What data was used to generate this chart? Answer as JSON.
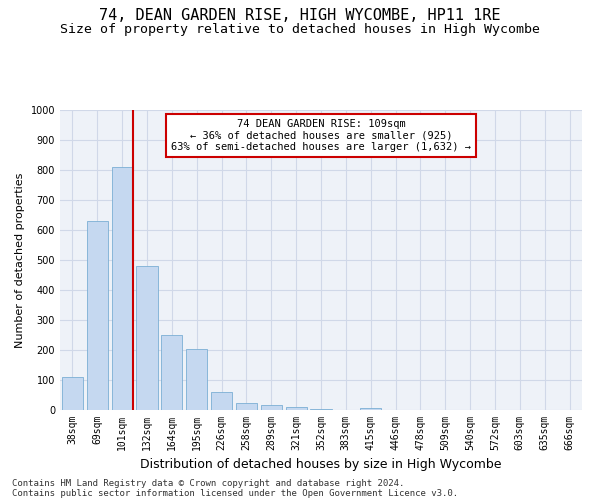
{
  "title": "74, DEAN GARDEN RISE, HIGH WYCOMBE, HP11 1RE",
  "subtitle": "Size of property relative to detached houses in High Wycombe",
  "xlabel": "Distribution of detached houses by size in High Wycombe",
  "ylabel": "Number of detached properties",
  "categories": [
    "38sqm",
    "69sqm",
    "101sqm",
    "132sqm",
    "164sqm",
    "195sqm",
    "226sqm",
    "258sqm",
    "289sqm",
    "321sqm",
    "352sqm",
    "383sqm",
    "415sqm",
    "446sqm",
    "478sqm",
    "509sqm",
    "540sqm",
    "572sqm",
    "603sqm",
    "635sqm",
    "666sqm"
  ],
  "values": [
    110,
    630,
    810,
    480,
    250,
    205,
    60,
    25,
    17,
    10,
    5,
    0,
    8,
    0,
    0,
    0,
    0,
    0,
    0,
    0,
    0
  ],
  "bar_color": "#c5d8f0",
  "bar_edgecolor": "#7bafd4",
  "grid_color": "#d0d8e8",
  "bg_color": "#eef2f8",
  "vline_color": "#cc0000",
  "annotation_text": "74 DEAN GARDEN RISE: 109sqm\n← 36% of detached houses are smaller (925)\n63% of semi-detached houses are larger (1,632) →",
  "annotation_box_color": "#ffffff",
  "annotation_box_edgecolor": "#cc0000",
  "ylim": [
    0,
    1000
  ],
  "yticks": [
    0,
    100,
    200,
    300,
    400,
    500,
    600,
    700,
    800,
    900,
    1000
  ],
  "footer1": "Contains HM Land Registry data © Crown copyright and database right 2024.",
  "footer2": "Contains public sector information licensed under the Open Government Licence v3.0.",
  "title_fontsize": 11,
  "subtitle_fontsize": 9.5,
  "xlabel_fontsize": 9,
  "ylabel_fontsize": 8,
  "tick_fontsize": 7,
  "footer_fontsize": 6.5,
  "annot_fontsize": 7.5
}
